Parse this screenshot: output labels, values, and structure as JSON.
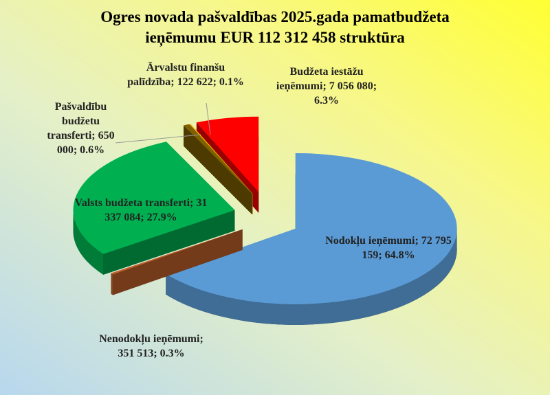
{
  "chart_data": {
    "type": "pie3d",
    "title": "Ogres novada pašvaldības 2025.gada pamatbudžeta ieņēmumu EUR 112 312 458 struktūra",
    "label_separator": ";",
    "categories": [
      "Nodokļu ieņēmumi",
      "Nenodokļu ieņēmumi",
      "Valsts budžeta transferti",
      "Pašvaldību budžetu transferti",
      "Ārvalstu finanšu palīdzība",
      "Budžeta iestāžu ieņēmumi"
    ],
    "values": [
      72795159,
      351513,
      31337084,
      650000,
      122622,
      7056080
    ],
    "value_labels": [
      "72 795 159",
      "351 513",
      "31 337 084",
      "650 000",
      "122 622",
      "7 056 080"
    ],
    "percents": [
      64.8,
      0.3,
      27.9,
      0.6,
      0.1,
      6.3
    ],
    "percent_labels": [
      "64.8%",
      "0.3%",
      "27.9%",
      "0.6%",
      "0.1%",
      "6.3%"
    ],
    "colors": [
      "#5b9bd5",
      "#c0622b",
      "#00b050",
      "#7f6000",
      "#ffc000",
      "#ff0000"
    ]
  }
}
